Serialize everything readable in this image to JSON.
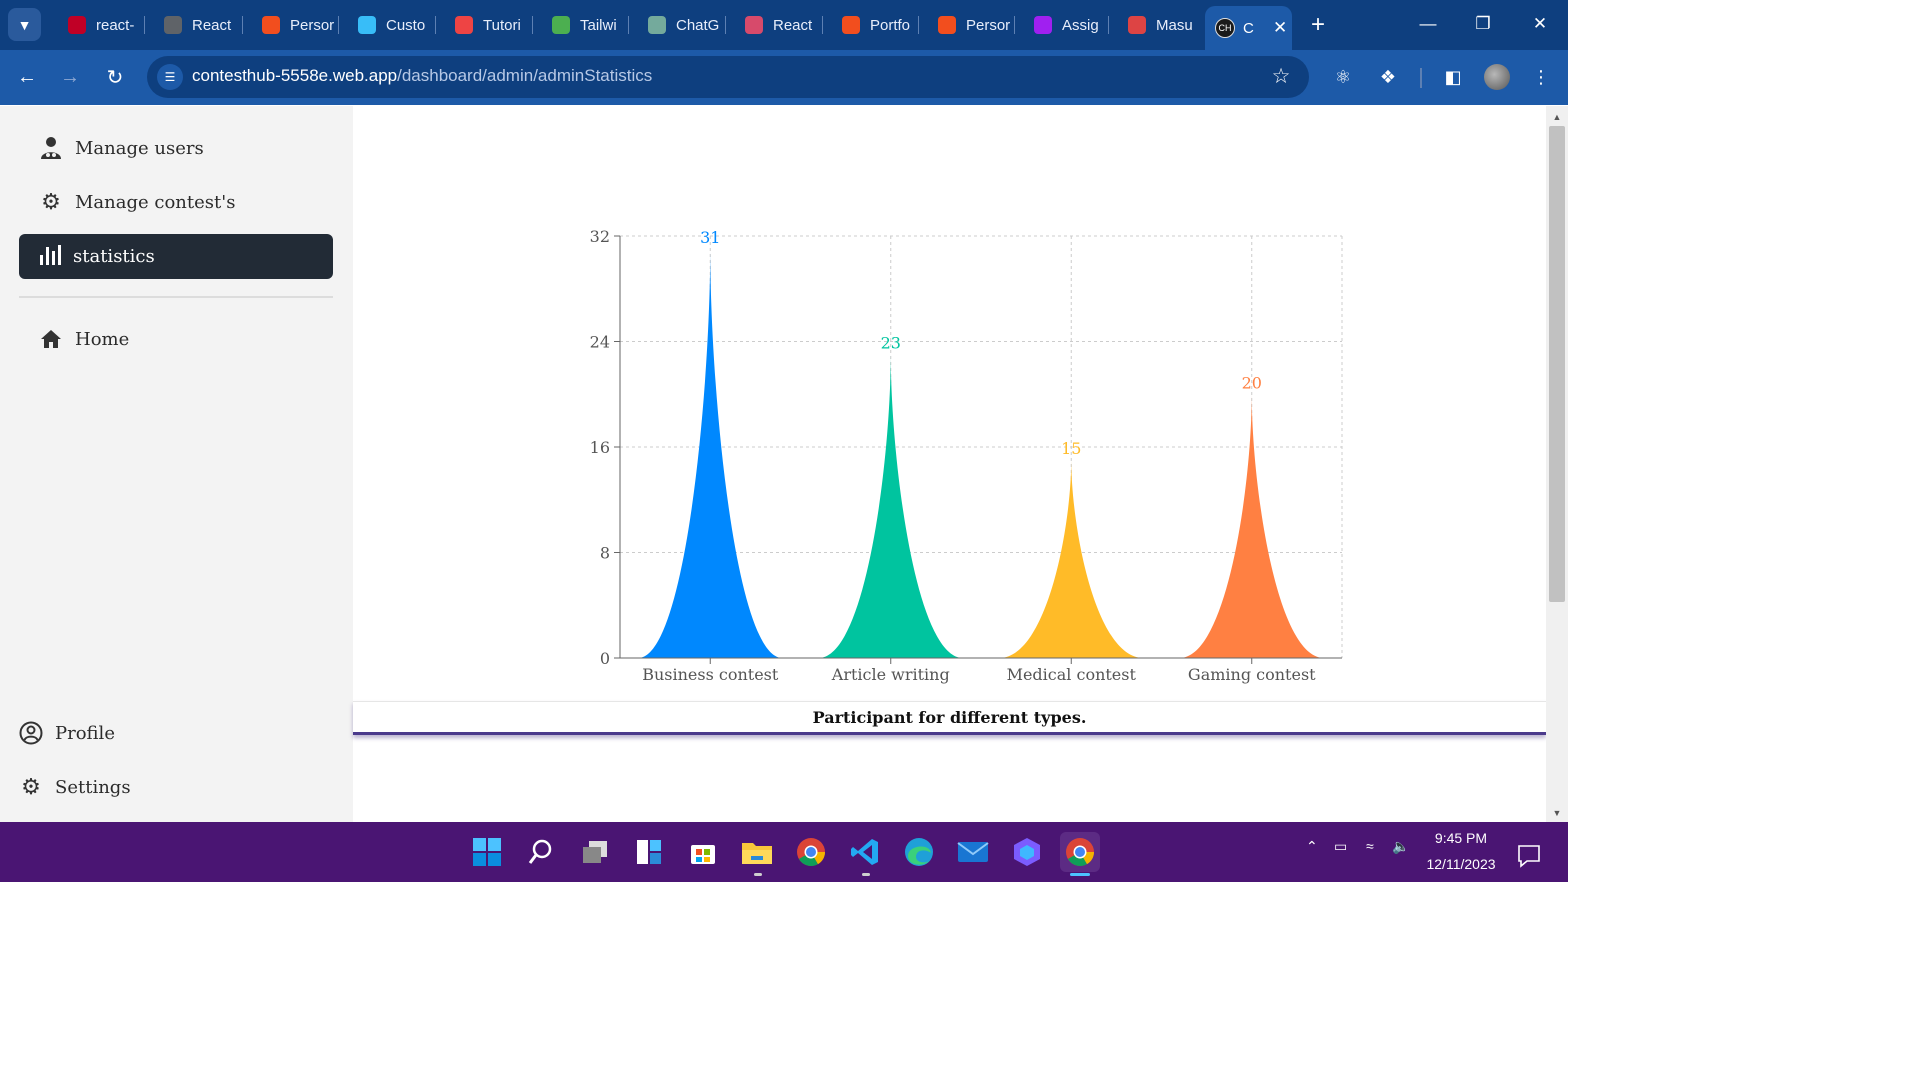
{
  "browser": {
    "tabs_menu_icon": "chevron-down-icon",
    "tabs": [
      {
        "title": "react-",
        "icon": "bookmark-icon",
        "color": "#c00026"
      },
      {
        "title": "React",
        "icon": "globe-icon",
        "color": "#5f6368"
      },
      {
        "title": "Persor",
        "icon": "figma-icon",
        "color": "#f24e1e"
      },
      {
        "title": "Custo",
        "icon": "tailwind-icon",
        "color": "#38bdf8"
      },
      {
        "title": "Tutori",
        "icon": "nodes-icon",
        "color": "#e44"
      },
      {
        "title": "Tailwi",
        "icon": "location-icon",
        "color": "#4caf50"
      },
      {
        "title": "ChatG",
        "icon": "openai-icon",
        "color": "#74aa9c"
      },
      {
        "title": "React",
        "icon": "react-icon",
        "color": "#d74a6b"
      },
      {
        "title": "Portfo",
        "icon": "figma-icon",
        "color": "#f24e1e"
      },
      {
        "title": "Persor",
        "icon": "figma-icon",
        "color": "#f24e1e"
      },
      {
        "title": "Assig",
        "icon": "play-icon",
        "color": "#a020f0"
      },
      {
        "title": "Masu",
        "icon": "avatar-icon",
        "color": "#d44"
      }
    ],
    "active_tab": {
      "title": "C",
      "icon": "contesthub-icon"
    },
    "url_host": "contesthub-5558e.web.app",
    "url_path": "/dashboard/admin/adminStatistics"
  },
  "sidebar": {
    "items_top": [
      {
        "label": "Manage users",
        "icon": "user-icon"
      },
      {
        "label": "Manage contest's",
        "icon": "gear-icon"
      }
    ],
    "active_item": {
      "label": "statistics",
      "icon": "bar-chart-icon"
    },
    "home": {
      "label": "Home",
      "icon": "home-icon"
    },
    "items_bottom": [
      {
        "label": "Profile",
        "icon": "profile-icon"
      },
      {
        "label": "Settings",
        "icon": "gear-icon"
      }
    ]
  },
  "chart_data": {
    "type": "bar",
    "shape": "triangle-curve",
    "categories": [
      "Business contest",
      "Article writing",
      "Medical contest",
      "Gaming contest"
    ],
    "values": [
      31,
      23,
      15,
      20
    ],
    "colors": [
      "#0088FE",
      "#00C49F",
      "#FFBB28",
      "#FF8042"
    ],
    "yticks": [
      0,
      8,
      16,
      24,
      32
    ],
    "ylim": [
      0,
      32
    ],
    "grid": true,
    "data_labels": true
  },
  "caption": "Participant for different types.",
  "taskbar": {
    "apps": [
      "windows-start-icon",
      "search-icon",
      "task-view-icon",
      "widgets-icon",
      "store-icon",
      "file-explorer-icon",
      "chrome-icon",
      "vscode-icon",
      "edge-icon",
      "mail-icon",
      "copilot-icon",
      "chrome-active-icon"
    ],
    "time": "9:45 PM",
    "date": "12/11/2023"
  }
}
